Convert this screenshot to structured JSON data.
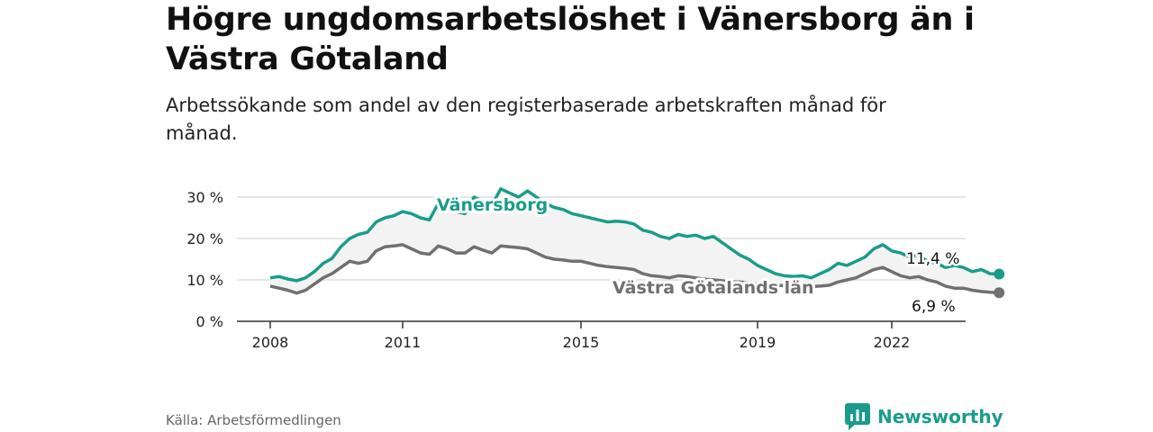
{
  "header": {
    "title": "Högre ungdomsarbetslöshet i Vänersborg än i Västra Götaland",
    "subtitle": "Arbetssökande som andel av den registerbaserade arbetskraften månad för månad."
  },
  "footer": {
    "source": "Källa: Arbetsförmedlingen",
    "brand": "Newsworthy"
  },
  "colors": {
    "vanersborg": "#1a9c8c",
    "vg": "#707070",
    "band": "#f3f3f3",
    "grid": "#d8d8d8",
    "axis": "#333333",
    "text": "#111111"
  },
  "chart_data": {
    "type": "line",
    "title": "Högre ungdomsarbetslöshet i Vänersborg än i Västra Götaland",
    "subtitle": "Arbetssökande som andel av den registerbaserade arbetskraften månad för månad.",
    "xlabel": "",
    "ylabel": "",
    "xlim": [
      2008,
      2023.0
    ],
    "ylim": [
      0,
      30
    ],
    "grid": true,
    "y_ticks": [
      {
        "value": 0,
        "label": "0 %"
      },
      {
        "value": 10,
        "label": "10 %"
      },
      {
        "value": 20,
        "label": "20 %"
      },
      {
        "value": 30,
        "label": "30 %"
      }
    ],
    "x_ticks": [
      {
        "value": 2008,
        "label": "2008"
      },
      {
        "value": 2011,
        "label": "2011"
      },
      {
        "value": 2015,
        "label": "2015"
      },
      {
        "value": 2019,
        "label": "2019"
      },
      {
        "value": 2022,
        "label": "2022"
      }
    ],
    "series": [
      {
        "name": "Vänersborg",
        "color": "#1a9c8c",
        "end_label": "11,4 %",
        "points": [
          [
            2008.0,
            10.5
          ],
          [
            2008.2,
            10.8
          ],
          [
            2008.4,
            10.2
          ],
          [
            2008.6,
            9.8
          ],
          [
            2008.8,
            10.5
          ],
          [
            2009.0,
            12.0
          ],
          [
            2009.2,
            14.0
          ],
          [
            2009.4,
            15.2
          ],
          [
            2009.6,
            18.0
          ],
          [
            2009.8,
            20.0
          ],
          [
            2010.0,
            21.0
          ],
          [
            2010.2,
            21.5
          ],
          [
            2010.4,
            24.0
          ],
          [
            2010.6,
            25.0
          ],
          [
            2010.8,
            25.5
          ],
          [
            2011.0,
            26.5
          ],
          [
            2011.2,
            26.0
          ],
          [
            2011.4,
            25.0
          ],
          [
            2011.6,
            24.5
          ],
          [
            2011.8,
            28.5
          ],
          [
            2012.0,
            27.0
          ],
          [
            2012.2,
            26.5
          ],
          [
            2012.4,
            26.0
          ],
          [
            2012.6,
            30.0
          ],
          [
            2012.8,
            29.0
          ],
          [
            2013.0,
            28.0
          ],
          [
            2013.2,
            32.0
          ],
          [
            2013.4,
            31.0
          ],
          [
            2013.6,
            30.0
          ],
          [
            2013.8,
            31.5
          ],
          [
            2014.0,
            30.0
          ],
          [
            2014.2,
            28.5
          ],
          [
            2014.4,
            27.5
          ],
          [
            2014.6,
            27.0
          ],
          [
            2014.8,
            26.0
          ],
          [
            2015.0,
            25.5
          ],
          [
            2015.2,
            25.0
          ],
          [
            2015.4,
            24.5
          ],
          [
            2015.6,
            24.0
          ],
          [
            2015.8,
            24.2
          ],
          [
            2016.0,
            24.0
          ],
          [
            2016.2,
            23.5
          ],
          [
            2016.4,
            22.0
          ],
          [
            2016.6,
            21.5
          ],
          [
            2016.8,
            20.5
          ],
          [
            2017.0,
            20.0
          ],
          [
            2017.2,
            21.0
          ],
          [
            2017.4,
            20.5
          ],
          [
            2017.6,
            20.8
          ],
          [
            2017.8,
            20.0
          ],
          [
            2018.0,
            20.5
          ],
          [
            2018.2,
            19.0
          ],
          [
            2018.4,
            17.5
          ],
          [
            2018.6,
            16.0
          ],
          [
            2018.8,
            15.0
          ],
          [
            2019.0,
            13.5
          ],
          [
            2019.2,
            12.5
          ],
          [
            2019.4,
            11.5
          ],
          [
            2019.6,
            11.0
          ],
          [
            2019.8,
            10.8
          ],
          [
            2020.0,
            11.0
          ],
          [
            2020.2,
            10.5
          ],
          [
            2020.4,
            11.5
          ],
          [
            2020.6,
            12.5
          ],
          [
            2020.8,
            14.0
          ],
          [
            2021.0,
            13.5
          ],
          [
            2021.2,
            14.5
          ],
          [
            2021.4,
            15.5
          ],
          [
            2021.6,
            17.5
          ],
          [
            2021.8,
            18.5
          ],
          [
            2022.0,
            17.0
          ],
          [
            2022.2,
            16.5
          ],
          [
            2022.4,
            15.5
          ],
          [
            2022.6,
            16.0
          ],
          [
            2022.8,
            14.5
          ],
          [
            2023.0,
            14.0
          ],
          [
            2023.2,
            13.0
          ],
          [
            2023.4,
            13.5
          ],
          [
            2023.6,
            13.0
          ],
          [
            2023.8,
            12.0
          ],
          [
            2024.0,
            12.5
          ],
          [
            2024.2,
            11.5
          ],
          [
            2024.4,
            11.4
          ]
        ]
      },
      {
        "name": "Västra Götalands län",
        "color": "#707070",
        "end_label": "6,9 %",
        "points": [
          [
            2008.0,
            8.5
          ],
          [
            2008.2,
            8.0
          ],
          [
            2008.4,
            7.5
          ],
          [
            2008.6,
            6.8
          ],
          [
            2008.8,
            7.5
          ],
          [
            2009.0,
            9.0
          ],
          [
            2009.2,
            10.5
          ],
          [
            2009.4,
            11.5
          ],
          [
            2009.6,
            13.0
          ],
          [
            2009.8,
            14.5
          ],
          [
            2010.0,
            14.0
          ],
          [
            2010.2,
            14.5
          ],
          [
            2010.4,
            17.0
          ],
          [
            2010.6,
            18.0
          ],
          [
            2010.8,
            18.2
          ],
          [
            2011.0,
            18.5
          ],
          [
            2011.2,
            17.5
          ],
          [
            2011.4,
            16.5
          ],
          [
            2011.6,
            16.2
          ],
          [
            2011.8,
            18.2
          ],
          [
            2012.0,
            17.5
          ],
          [
            2012.2,
            16.5
          ],
          [
            2012.4,
            16.5
          ],
          [
            2012.6,
            18.0
          ],
          [
            2012.8,
            17.2
          ],
          [
            2013.0,
            16.5
          ],
          [
            2013.2,
            18.2
          ],
          [
            2013.4,
            18.0
          ],
          [
            2013.6,
            17.8
          ],
          [
            2013.8,
            17.5
          ],
          [
            2014.0,
            16.5
          ],
          [
            2014.2,
            15.5
          ],
          [
            2014.4,
            15.0
          ],
          [
            2014.6,
            14.8
          ],
          [
            2014.8,
            14.5
          ],
          [
            2015.0,
            14.5
          ],
          [
            2015.2,
            14.0
          ],
          [
            2015.4,
            13.5
          ],
          [
            2015.6,
            13.2
          ],
          [
            2015.8,
            13.0
          ],
          [
            2016.0,
            12.8
          ],
          [
            2016.2,
            12.5
          ],
          [
            2016.4,
            11.5
          ],
          [
            2016.6,
            11.0
          ],
          [
            2016.8,
            10.8
          ],
          [
            2017.0,
            10.5
          ],
          [
            2017.2,
            11.0
          ],
          [
            2017.4,
            10.8
          ],
          [
            2017.6,
            10.5
          ],
          [
            2017.8,
            10.2
          ],
          [
            2018.0,
            10.0
          ],
          [
            2018.2,
            9.8
          ],
          [
            2018.4,
            9.5
          ],
          [
            2018.6,
            9.5
          ],
          [
            2018.8,
            9.3
          ],
          [
            2019.0,
            9.0
          ],
          [
            2019.2,
            8.8
          ],
          [
            2019.4,
            8.7
          ],
          [
            2019.6,
            8.6
          ],
          [
            2019.8,
            8.5
          ],
          [
            2020.0,
            8.6
          ],
          [
            2020.2,
            8.4
          ],
          [
            2020.4,
            8.5
          ],
          [
            2020.6,
            8.7
          ],
          [
            2020.8,
            9.5
          ],
          [
            2021.0,
            10.0
          ],
          [
            2021.2,
            10.5
          ],
          [
            2021.4,
            11.5
          ],
          [
            2021.6,
            12.5
          ],
          [
            2021.8,
            13.0
          ],
          [
            2022.0,
            12.0
          ],
          [
            2022.2,
            11.0
          ],
          [
            2022.4,
            10.5
          ],
          [
            2022.6,
            10.8
          ],
          [
            2022.8,
            10.0
          ],
          [
            2023.0,
            9.5
          ],
          [
            2023.2,
            8.5
          ],
          [
            2023.4,
            8.0
          ],
          [
            2023.6,
            8.0
          ],
          [
            2023.8,
            7.5
          ],
          [
            2024.0,
            7.2
          ],
          [
            2024.2,
            7.0
          ],
          [
            2024.4,
            6.9
          ]
        ]
      }
    ]
  }
}
